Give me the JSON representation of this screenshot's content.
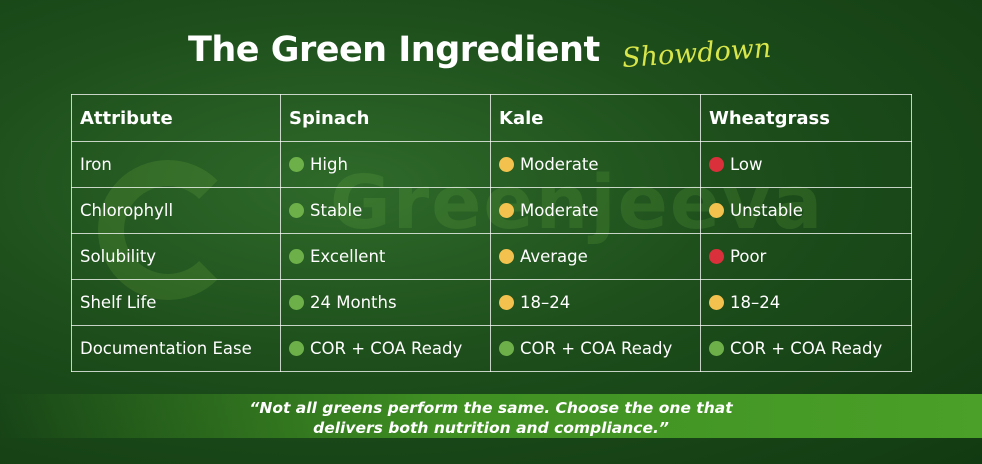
{
  "header": {
    "title": "The Green Ingredient",
    "script_word": "Showdown"
  },
  "watermark": {
    "brand": "Greenjeeva"
  },
  "table": {
    "columns": [
      "Attribute",
      "Spinach",
      "Kale",
      "Wheatgrass"
    ],
    "rows": [
      {
        "attribute": "Iron",
        "cells": [
          {
            "status": "green",
            "text": "High"
          },
          {
            "status": "yellow",
            "text": "Moderate"
          },
          {
            "status": "red",
            "text": "Low"
          }
        ]
      },
      {
        "attribute": "Chlorophyll",
        "cells": [
          {
            "status": "green",
            "text": "Stable"
          },
          {
            "status": "yellow",
            "text": "Moderate"
          },
          {
            "status": "yellow",
            "text": "Unstable"
          }
        ]
      },
      {
        "attribute": "Solubility",
        "cells": [
          {
            "status": "green",
            "text": "Excellent"
          },
          {
            "status": "yellow",
            "text": "Average"
          },
          {
            "status": "red",
            "text": "Poor"
          }
        ]
      },
      {
        "attribute": "Shelf Life",
        "cells": [
          {
            "status": "green",
            "text": "24 Months"
          },
          {
            "status": "yellow",
            "text": "18–24"
          },
          {
            "status": "yellow",
            "text": "18–24"
          }
        ]
      },
      {
        "attribute": "Documentation Ease",
        "cells": [
          {
            "status": "green",
            "text": "COR + COA Ready"
          },
          {
            "status": "green",
            "text": "COR + COA Ready"
          },
          {
            "status": "green",
            "text": "COR + COA Ready"
          }
        ]
      }
    ]
  },
  "status_colors": {
    "green": "#6db04a",
    "yellow": "#f2c14e",
    "red": "#d9303b"
  },
  "quote": {
    "line1": "“Not all greens perform the same. Choose the one that",
    "line2": "delivers both nutrition and compliance.”"
  }
}
